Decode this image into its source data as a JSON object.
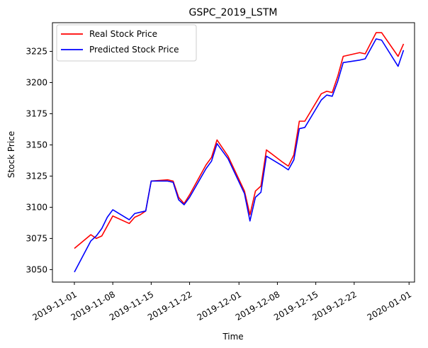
{
  "chart_data": {
    "type": "line",
    "title": "GSPC_2019_LSTM",
    "xlabel": "Time",
    "ylabel": "Stock Price",
    "xlim": [
      "2019-10-28",
      "2020-01-02"
    ],
    "ylim": [
      3040,
      3248
    ],
    "x_ticks": [
      "2019-11-01",
      "2019-11-08",
      "2019-11-15",
      "2019-11-22",
      "2019-12-01",
      "2019-12-08",
      "2019-12-15",
      "2019-12-22",
      "2020-01-01"
    ],
    "y_ticks": [
      3050,
      3075,
      3100,
      3125,
      3150,
      3175,
      3200,
      3225
    ],
    "grid": false,
    "legend_position": "top-left",
    "x": [
      "2019-11-01",
      "2019-11-04",
      "2019-11-05",
      "2019-11-06",
      "2019-11-07",
      "2019-11-08",
      "2019-11-11",
      "2019-11-12",
      "2019-11-13",
      "2019-11-14",
      "2019-11-15",
      "2019-11-18",
      "2019-11-19",
      "2019-11-20",
      "2019-11-21",
      "2019-11-22",
      "2019-11-25",
      "2019-11-26",
      "2019-11-27",
      "2019-11-29",
      "2019-12-02",
      "2019-12-03",
      "2019-12-04",
      "2019-12-05",
      "2019-12-06",
      "2019-12-09",
      "2019-12-10",
      "2019-12-11",
      "2019-12-12",
      "2019-12-13",
      "2019-12-16",
      "2019-12-17",
      "2019-12-18",
      "2019-12-19",
      "2019-12-20",
      "2019-12-23",
      "2019-12-24",
      "2019-12-26",
      "2019-12-27",
      "2019-12-30",
      "2019-12-31"
    ],
    "series": [
      {
        "name": "Real Stock Price",
        "color": "#ff0000",
        "values": [
          3067,
          3078,
          3075,
          3077,
          3085,
          3093,
          3087,
          3092,
          3094,
          3097,
          3121,
          3122,
          3121,
          3108,
          3103,
          3110,
          3134,
          3140,
          3154,
          3141,
          3113,
          3094,
          3113,
          3117,
          3146,
          3136,
          3133,
          3142,
          3169,
          3169,
          3191,
          3193,
          3192,
          3205,
          3221,
          3224,
          3223,
          3240,
          3240,
          3221,
          3231
        ]
      },
      {
        "name": "Predicted Stock Price",
        "color": "#0000ff",
        "values": [
          3048,
          3073,
          3077,
          3083,
          3092,
          3098,
          3090,
          3095,
          3096,
          3097,
          3121,
          3121,
          3120,
          3106,
          3102,
          3108,
          3131,
          3137,
          3151,
          3139,
          3111,
          3089,
          3108,
          3112,
          3141,
          3133,
          3130,
          3138,
          3163,
          3164,
          3186,
          3190,
          3189,
          3201,
          3216,
          3218,
          3219,
          3235,
          3234,
          3213,
          3226
        ]
      }
    ]
  }
}
